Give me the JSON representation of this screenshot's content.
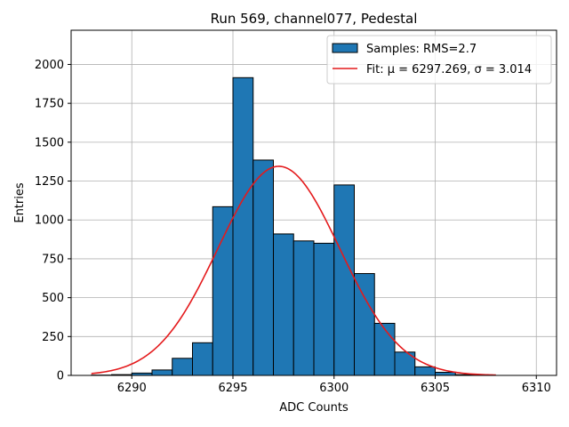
{
  "chart_data": {
    "type": "bar",
    "title": "Run 569, channel077, Pedestal",
    "xlabel": "ADC Counts",
    "ylabel": "Entries",
    "xlim": [
      6287.0,
      6311.0
    ],
    "ylim": [
      0,
      2220
    ],
    "xticks": [
      6290,
      6295,
      6300,
      6305,
      6310
    ],
    "yticks": [
      0,
      250,
      500,
      750,
      1000,
      1250,
      1500,
      1750,
      2000
    ],
    "grid": true,
    "legend_position": "top-right",
    "histogram": {
      "name": "Samples: RMS=2.7",
      "bin_width": 1,
      "color": "#1f77b4",
      "edge_color": "#000000",
      "bins": [
        {
          "left": 6288,
          "count": 2
        },
        {
          "left": 6289,
          "count": 5
        },
        {
          "left": 6290,
          "count": 15
        },
        {
          "left": 6291,
          "count": 35
        },
        {
          "left": 6292,
          "count": 110
        },
        {
          "left": 6293,
          "count": 210
        },
        {
          "left": 6294,
          "count": 1085
        },
        {
          "left": 6295,
          "count": 1915
        },
        {
          "left": 6296,
          "count": 1385
        },
        {
          "left": 6297,
          "count": 910
        },
        {
          "left": 6298,
          "count": 865
        },
        {
          "left": 6299,
          "count": 850
        },
        {
          "left": 6300,
          "count": 1225
        },
        {
          "left": 6301,
          "count": 655
        },
        {
          "left": 6302,
          "count": 335
        },
        {
          "left": 6303,
          "count": 150
        },
        {
          "left": 6304,
          "count": 55
        },
        {
          "left": 6305,
          "count": 20
        },
        {
          "left": 6306,
          "count": 5
        }
      ]
    },
    "fit": {
      "name": "Fit: μ = 6297.269, σ = 3.014",
      "mu_label": "μ",
      "sigma_label": "σ",
      "mu": 6297.269,
      "sigma": 3.014,
      "amplitude": 1345,
      "x_range": [
        6288,
        6308
      ],
      "color": "#e41a1c"
    }
  }
}
